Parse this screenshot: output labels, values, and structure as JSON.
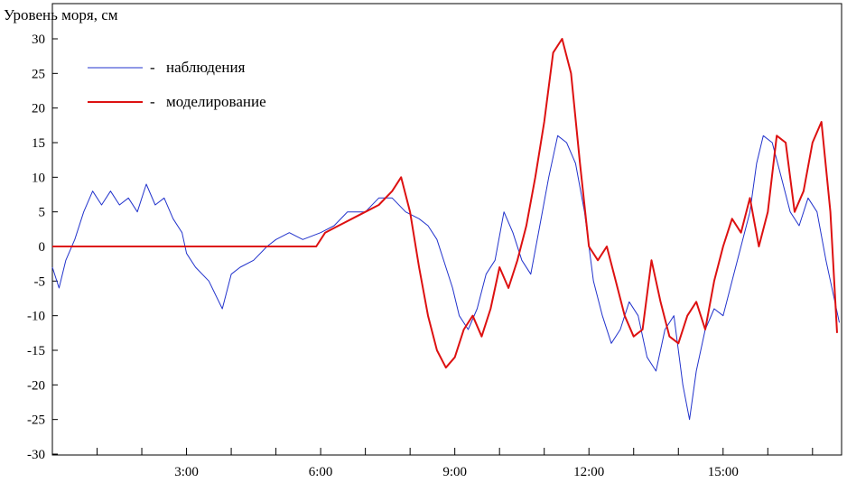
{
  "chart_data": {
    "type": "line",
    "ylabel": "Уровень моря, см",
    "xlabel": "",
    "xlim": [
      0,
      17.65
    ],
    "ylim": [
      -30,
      30
    ],
    "y_ticks": [
      "30",
      "25",
      "20",
      "15",
      "10",
      "5",
      "0",
      "-5",
      "-10",
      "-15",
      "-20",
      "-25",
      "-30"
    ],
    "x_ticks": [
      {
        "label": "",
        "value": 1
      },
      {
        "label": "",
        "value": 2
      },
      {
        "label": "3:00",
        "value": 3
      },
      {
        "label": "",
        "value": 4
      },
      {
        "label": "",
        "value": 5
      },
      {
        "label": "6:00",
        "value": 6
      },
      {
        "label": "",
        "value": 7
      },
      {
        "label": "",
        "value": 8
      },
      {
        "label": "9:00",
        "value": 9
      },
      {
        "label": "",
        "value": 10
      },
      {
        "label": "",
        "value": 11
      },
      {
        "label": "12:00",
        "value": 12
      },
      {
        "label": "",
        "value": 13
      },
      {
        "label": "",
        "value": 14
      },
      {
        "label": "15:00",
        "value": 15
      },
      {
        "label": "",
        "value": 16
      },
      {
        "label": "",
        "value": 17
      }
    ],
    "grid": false,
    "legend_position": "top-left",
    "legend_dash": "-",
    "series": [
      {
        "name": "наблюдения",
        "color": "#2233cc",
        "x": [
          0,
          0.15,
          0.3,
          0.5,
          0.7,
          0.9,
          1.1,
          1.3,
          1.5,
          1.7,
          1.9,
          2.1,
          2.3,
          2.5,
          2.7,
          2.9,
          3.0,
          3.2,
          3.5,
          3.8,
          4.0,
          4.2,
          4.5,
          4.8,
          5.0,
          5.3,
          5.6,
          6.0,
          6.3,
          6.6,
          7.0,
          7.3,
          7.6,
          7.9,
          8.2,
          8.4,
          8.6,
          8.8,
          8.95,
          9.1,
          9.3,
          9.5,
          9.7,
          9.9,
          10.1,
          10.3,
          10.5,
          10.7,
          10.9,
          11.1,
          11.3,
          11.5,
          11.7,
          11.9,
          12.1,
          12.3,
          12.5,
          12.7,
          12.9,
          13.1,
          13.3,
          13.5,
          13.7,
          13.9,
          14.1,
          14.25,
          14.4,
          14.6,
          14.8,
          15.0,
          15.2,
          15.4,
          15.6,
          15.75,
          15.9,
          16.1,
          16.3,
          16.5,
          16.7,
          16.9,
          17.1,
          17.3,
          17.5,
          17.6
        ],
        "y": [
          -3,
          -6,
          -2,
          1,
          5,
          8,
          6,
          8,
          6,
          7,
          5,
          9,
          6,
          7,
          4,
          2,
          -1,
          -3,
          -5,
          -9,
          -4,
          -3,
          -2,
          0,
          1,
          2,
          1,
          2,
          3,
          5,
          5,
          7,
          7,
          5,
          4,
          3,
          1,
          -3,
          -6,
          -10,
          -12,
          -9,
          -4,
          -2,
          5,
          2,
          -2,
          -4,
          3,
          10,
          16,
          15,
          12,
          5,
          -5,
          -10,
          -14,
          -12,
          -8,
          -10,
          -16,
          -18,
          -12,
          -10,
          -20,
          -25,
          -18,
          -12,
          -9,
          -10,
          -5,
          0,
          5,
          12,
          16,
          15,
          10,
          5,
          3,
          7,
          5,
          -2,
          -8,
          -11
        ]
      },
      {
        "name": "моделирование",
        "color": "#dd1111",
        "x": [
          0,
          1,
          2,
          3,
          4,
          5,
          5.9,
          6.1,
          6.4,
          6.7,
          7.0,
          7.3,
          7.6,
          7.8,
          8.0,
          8.2,
          8.4,
          8.6,
          8.8,
          9.0,
          9.2,
          9.4,
          9.6,
          9.8,
          10.0,
          10.2,
          10.4,
          10.6,
          10.8,
          11.0,
          11.2,
          11.4,
          11.6,
          11.8,
          12.0,
          12.2,
          12.4,
          12.6,
          12.8,
          13.0,
          13.2,
          13.4,
          13.6,
          13.8,
          14.0,
          14.2,
          14.4,
          14.6,
          14.8,
          15.0,
          15.2,
          15.4,
          15.6,
          15.8,
          16.0,
          16.2,
          16.4,
          16.6,
          16.8,
          17.0,
          17.2,
          17.4,
          17.55
        ],
        "y": [
          0,
          0,
          0,
          0,
          0,
          0,
          0,
          2,
          3,
          4,
          5,
          6,
          8,
          10,
          5,
          -3,
          -10,
          -15,
          -17.5,
          -16,
          -12,
          -10,
          -13,
          -9,
          -3,
          -6,
          -2,
          3,
          10,
          18,
          28,
          30,
          25,
          12,
          0,
          -2,
          0,
          -5,
          -10,
          -13,
          -12,
          -2,
          -8,
          -13,
          -14,
          -10,
          -8,
          -12,
          -5,
          0,
          4,
          2,
          7,
          0,
          5,
          16,
          15,
          5,
          8,
          15,
          18,
          5,
          -12.5
        ]
      }
    ]
  }
}
